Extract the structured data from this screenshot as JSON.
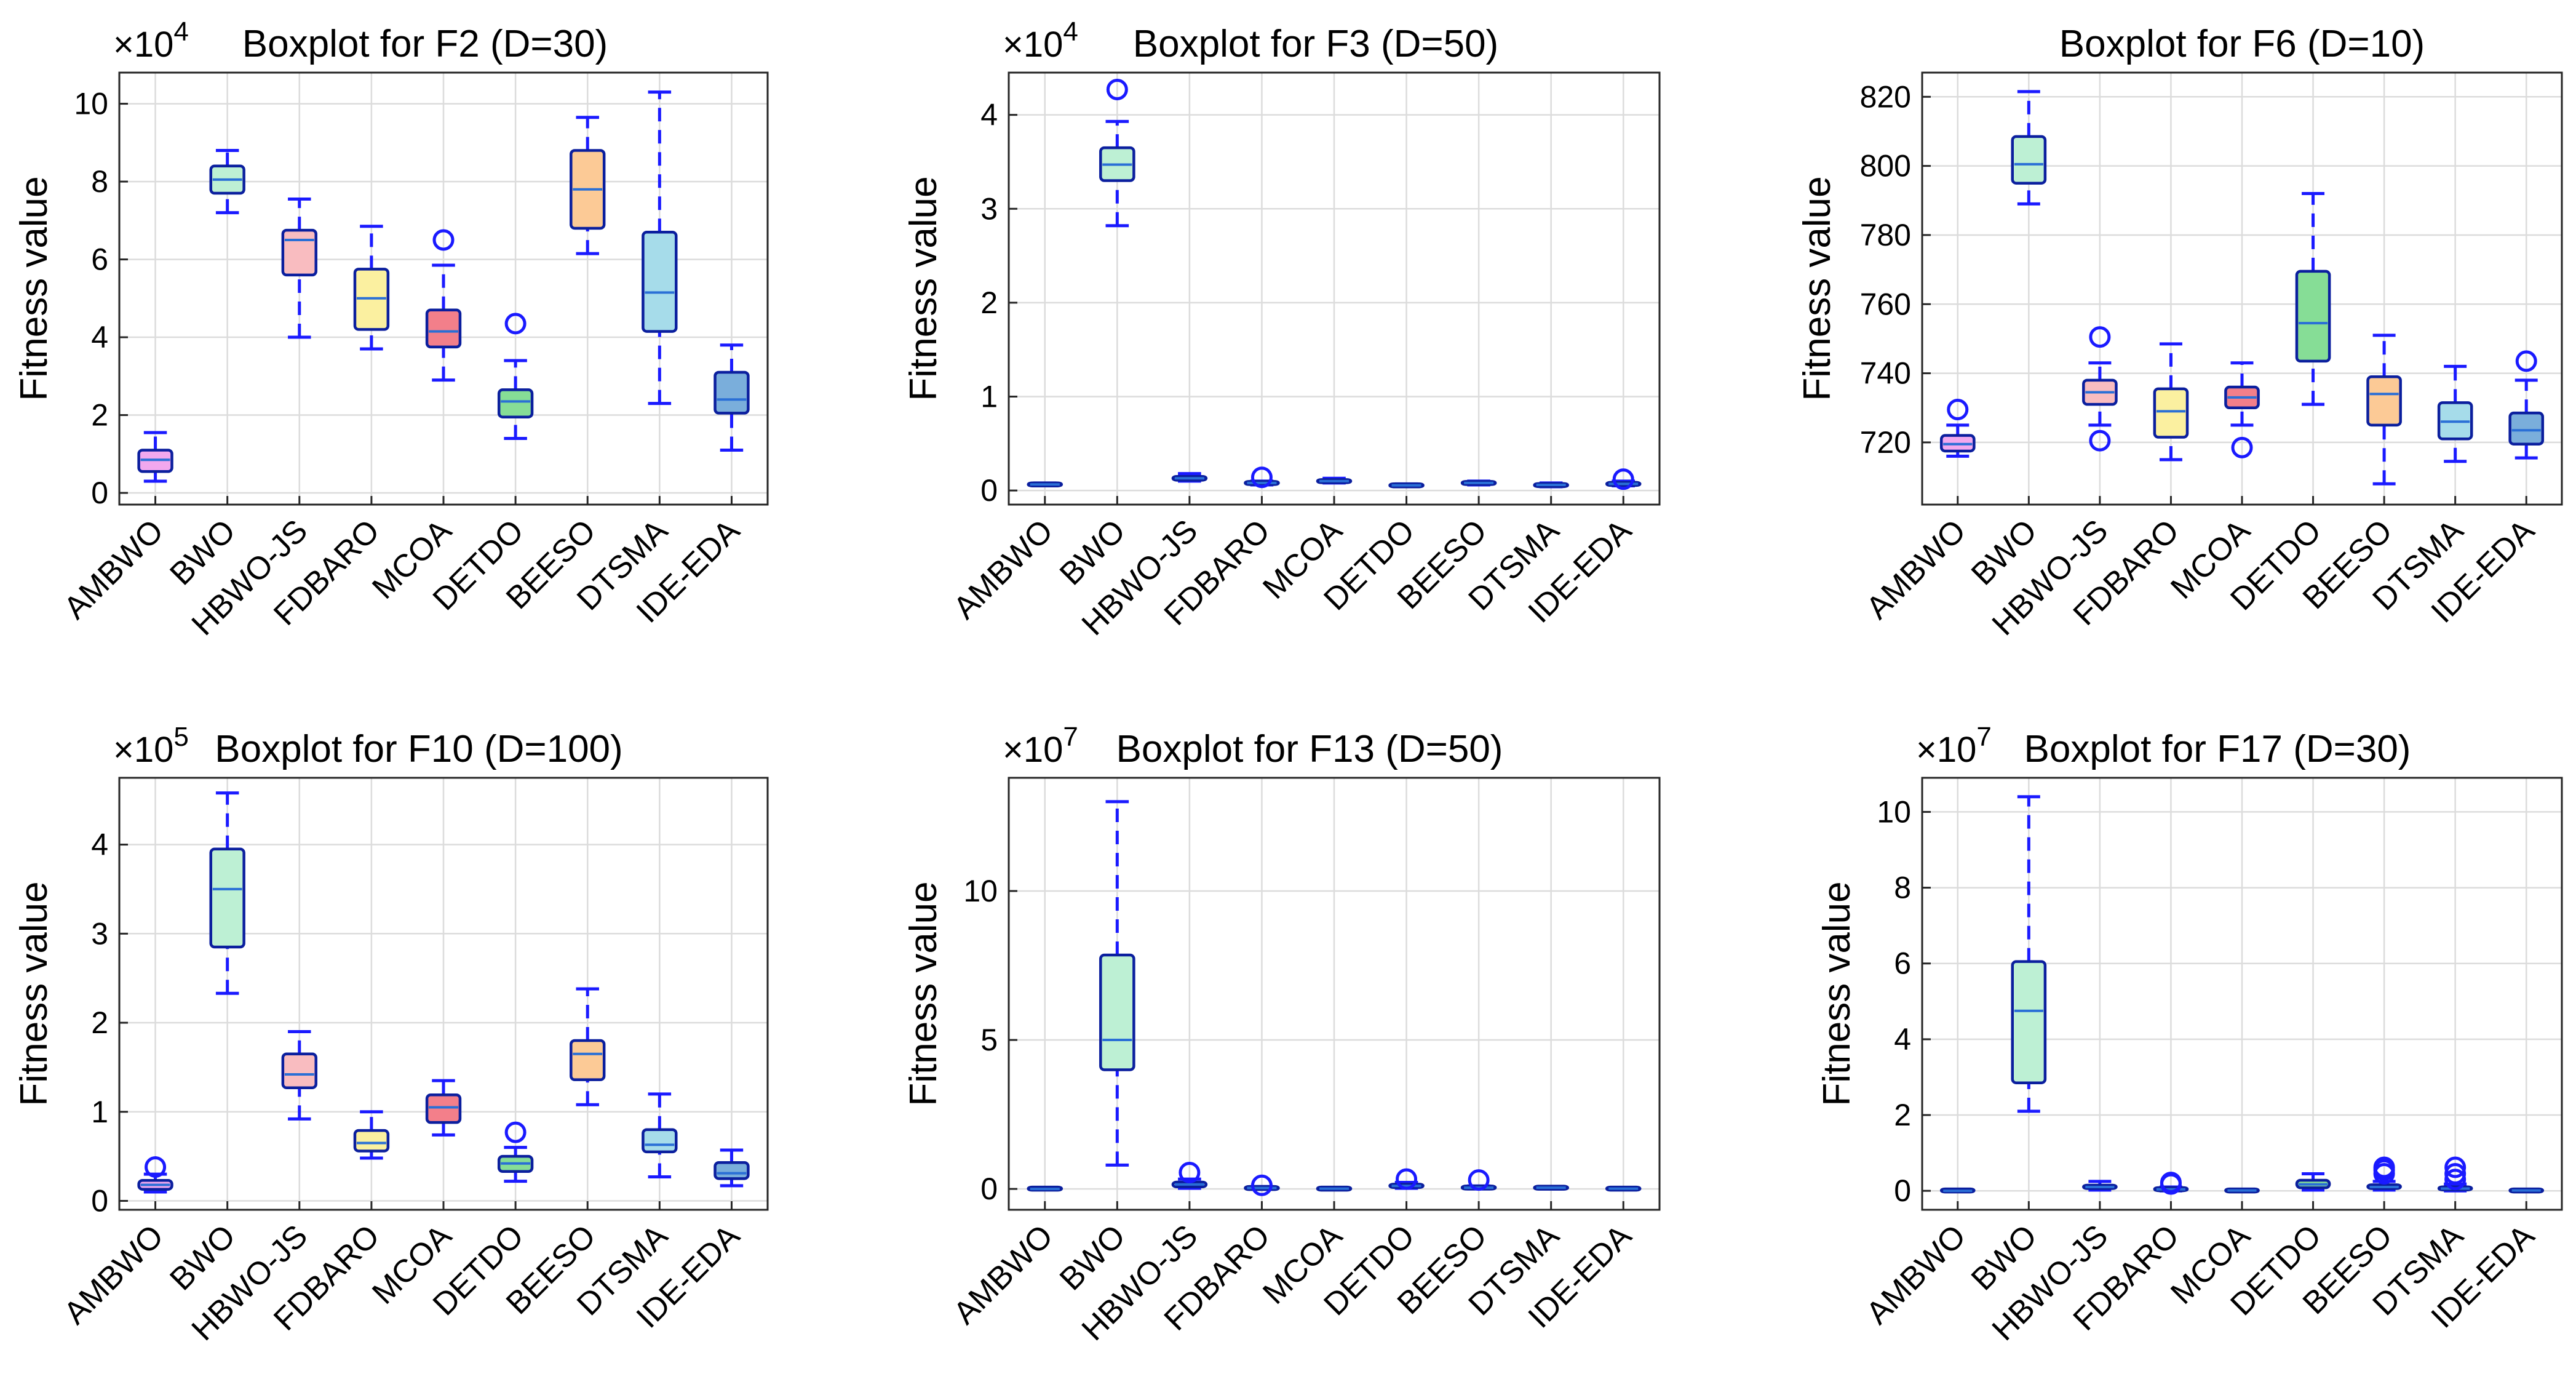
{
  "chart_data": [
    {
      "type": "box",
      "title": "Boxplot for F2 (D=30)",
      "multiplier": "×10",
      "exponent": "4",
      "ylabel": "Fitness value",
      "ylim": [
        -0.3,
        10.8
      ],
      "yticks": [
        0,
        2,
        4,
        6,
        8,
        10
      ],
      "categories": [
        "AMBWO",
        "BWO",
        "HBWO-JS",
        "FDBARO",
        "MCOA",
        "DETDO",
        "BEESO",
        "DTSMA",
        "IDE-EDA"
      ],
      "boxes": [
        {
          "name": "AMBWO",
          "min": 0.3,
          "q1": 0.55,
          "median": 0.85,
          "q3": 1.1,
          "max": 1.55,
          "outliers": []
        },
        {
          "name": "BWO",
          "min": 7.2,
          "q1": 7.7,
          "median": 8.05,
          "q3": 8.4,
          "max": 8.8,
          "outliers": []
        },
        {
          "name": "HBWO-JS",
          "min": 4.0,
          "q1": 5.6,
          "median": 6.5,
          "q3": 6.75,
          "max": 7.55,
          "outliers": []
        },
        {
          "name": "FDBARO",
          "min": 3.7,
          "q1": 4.2,
          "median": 5.0,
          "q3": 5.75,
          "max": 6.85,
          "outliers": []
        },
        {
          "name": "MCOA",
          "min": 2.9,
          "q1": 3.75,
          "median": 4.15,
          "q3": 4.7,
          "max": 5.85,
          "outliers": [
            6.5
          ]
        },
        {
          "name": "DETDO",
          "min": 1.4,
          "q1": 1.95,
          "median": 2.35,
          "q3": 2.65,
          "max": 3.4,
          "outliers": [
            4.35
          ]
        },
        {
          "name": "BEESO",
          "min": 6.15,
          "q1": 6.8,
          "median": 7.8,
          "q3": 8.8,
          "max": 9.65,
          "outliers": []
        },
        {
          "name": "DTSMA",
          "min": 2.3,
          "q1": 4.15,
          "median": 5.15,
          "q3": 6.7,
          "max": 10.3,
          "outliers": []
        },
        {
          "name": "IDE-EDA",
          "min": 1.1,
          "q1": 2.05,
          "median": 2.4,
          "q3": 3.1,
          "max": 3.8,
          "outliers": []
        }
      ],
      "colors": [
        "#f2a8ee",
        "#bdf0d4",
        "#f9bcc0",
        "#fbf0a0",
        "#f37f8a",
        "#86dd96",
        "#fcca96",
        "#a6dcea",
        "#7aaedb"
      ]
    },
    {
      "type": "box",
      "title": "Boxplot for F3 (D=50)",
      "multiplier": "×10",
      "exponent": "4",
      "ylabel": "Fitness value",
      "ylim": [
        -0.15,
        4.45
      ],
      "yticks": [
        0,
        1,
        2,
        3,
        4
      ],
      "categories": [
        "AMBWO",
        "BWO",
        "HBWO-JS",
        "FDBARO",
        "MCOA",
        "DETDO",
        "BEESO",
        "DTSMA",
        "IDE-EDA"
      ],
      "boxes": [
        {
          "name": "AMBWO",
          "min": 0.05,
          "q1": 0.06,
          "median": 0.065,
          "q3": 0.07,
          "max": 0.08,
          "outliers": []
        },
        {
          "name": "BWO",
          "min": 2.82,
          "q1": 3.3,
          "median": 3.47,
          "q3": 3.65,
          "max": 3.93,
          "outliers": [
            4.27
          ]
        },
        {
          "name": "HBWO-JS",
          "min": 0.1,
          "q1": 0.11,
          "median": 0.13,
          "q3": 0.15,
          "max": 0.18,
          "outliers": []
        },
        {
          "name": "FDBARO",
          "min": 0.06,
          "q1": 0.07,
          "median": 0.08,
          "q3": 0.09,
          "max": 0.1,
          "outliers": [
            0.14
          ]
        },
        {
          "name": "MCOA",
          "min": 0.08,
          "q1": 0.09,
          "median": 0.1,
          "q3": 0.11,
          "max": 0.13,
          "outliers": []
        },
        {
          "name": "DETDO",
          "min": 0.04,
          "q1": 0.05,
          "median": 0.055,
          "q3": 0.06,
          "max": 0.07,
          "outliers": []
        },
        {
          "name": "BEESO",
          "min": 0.06,
          "q1": 0.07,
          "median": 0.08,
          "q3": 0.09,
          "max": 0.1,
          "outliers": []
        },
        {
          "name": "DTSMA",
          "min": 0.04,
          "q1": 0.05,
          "median": 0.06,
          "q3": 0.065,
          "max": 0.08,
          "outliers": []
        },
        {
          "name": "IDE-EDA",
          "min": 0.05,
          "q1": 0.06,
          "median": 0.07,
          "q3": 0.08,
          "max": 0.1,
          "outliers": [
            0.12
          ]
        }
      ],
      "colors": [
        "#f2a8ee",
        "#bdf0d4",
        "#f9bcc0",
        "#fbf0a0",
        "#f37f8a",
        "#86dd96",
        "#fcca96",
        "#a6dcea",
        "#7aaedb"
      ]
    },
    {
      "type": "box",
      "title": "Boxplot for F6 (D=10)",
      "multiplier": "",
      "exponent": "",
      "ylabel": "Fitness value",
      "ylim": [
        702,
        827
      ],
      "yticks": [
        720,
        740,
        760,
        780,
        800,
        820
      ],
      "categories": [
        "AMBWO",
        "BWO",
        "HBWO-JS",
        "FDBARO",
        "MCOA",
        "DETDO",
        "BEESO",
        "DTSMA",
        "IDE-EDA"
      ],
      "boxes": [
        {
          "name": "AMBWO",
          "min": 716,
          "q1": 717.5,
          "median": 719.5,
          "q3": 722,
          "max": 725,
          "outliers": [
            729.5
          ]
        },
        {
          "name": "BWO",
          "min": 789,
          "q1": 795,
          "median": 800.5,
          "q3": 808.5,
          "max": 821.5,
          "outliers": []
        },
        {
          "name": "HBWO-JS",
          "min": 725,
          "q1": 731,
          "median": 734.5,
          "q3": 738,
          "max": 743,
          "outliers": [
            750.5,
            720.5
          ]
        },
        {
          "name": "FDBARO",
          "min": 715,
          "q1": 721.5,
          "median": 729,
          "q3": 735.5,
          "max": 748.5,
          "outliers": []
        },
        {
          "name": "MCOA",
          "min": 725,
          "q1": 730,
          "median": 733,
          "q3": 736,
          "max": 743,
          "outliers": [
            718.5
          ]
        },
        {
          "name": "DETDO",
          "min": 731,
          "q1": 743.5,
          "median": 754.5,
          "q3": 769.5,
          "max": 792,
          "outliers": []
        },
        {
          "name": "BEESO",
          "min": 708,
          "q1": 725,
          "median": 734,
          "q3": 739,
          "max": 751,
          "outliers": []
        },
        {
          "name": "DTSMA",
          "min": 714.5,
          "q1": 721,
          "median": 726,
          "q3": 731.5,
          "max": 742,
          "outliers": []
        },
        {
          "name": "IDE-EDA",
          "min": 715.5,
          "q1": 719.5,
          "median": 723.5,
          "q3": 728.5,
          "max": 738,
          "outliers": [
            743.5
          ]
        }
      ],
      "colors": [
        "#f2a8ee",
        "#bdf0d4",
        "#f9bcc0",
        "#fbf0a0",
        "#f37f8a",
        "#86dd96",
        "#fcca96",
        "#a6dcea",
        "#7aaedb"
      ]
    },
    {
      "type": "box",
      "title": "Boxplot for F10 (D=100)",
      "multiplier": "×10",
      "exponent": "5",
      "ylabel": "Fitness value",
      "ylim": [
        -0.1,
        4.75
      ],
      "yticks": [
        0,
        1,
        2,
        3,
        4
      ],
      "categories": [
        "AMBWO",
        "BWO",
        "HBWO-JS",
        "FDBARO",
        "MCOA",
        "DETDO",
        "BEESO",
        "DTSMA",
        "IDE-EDA"
      ],
      "boxes": [
        {
          "name": "AMBWO",
          "min": 0.1,
          "q1": 0.13,
          "median": 0.18,
          "q3": 0.23,
          "max": 0.3,
          "outliers": [
            0.38
          ]
        },
        {
          "name": "BWO",
          "min": 2.33,
          "q1": 2.85,
          "median": 3.5,
          "q3": 3.95,
          "max": 4.58,
          "outliers": []
        },
        {
          "name": "HBWO-JS",
          "min": 0.92,
          "q1": 1.27,
          "median": 1.42,
          "q3": 1.65,
          "max": 1.9,
          "outliers": []
        },
        {
          "name": "FDBARO",
          "min": 0.48,
          "q1": 0.56,
          "median": 0.65,
          "q3": 0.79,
          "max": 1.0,
          "outliers": []
        },
        {
          "name": "MCOA",
          "min": 0.74,
          "q1": 0.88,
          "median": 1.05,
          "q3": 1.19,
          "max": 1.35,
          "outliers": []
        },
        {
          "name": "DETDO",
          "min": 0.22,
          "q1": 0.33,
          "median": 0.42,
          "q3": 0.5,
          "max": 0.6,
          "outliers": [
            0.77
          ]
        },
        {
          "name": "BEESO",
          "min": 1.08,
          "q1": 1.36,
          "median": 1.65,
          "q3": 1.8,
          "max": 2.38,
          "outliers": []
        },
        {
          "name": "DTSMA",
          "min": 0.27,
          "q1": 0.55,
          "median": 0.63,
          "q3": 0.8,
          "max": 1.2,
          "outliers": []
        },
        {
          "name": "IDE-EDA",
          "min": 0.17,
          "q1": 0.25,
          "median": 0.31,
          "q3": 0.43,
          "max": 0.57,
          "outliers": []
        }
      ],
      "colors": [
        "#f2a8ee",
        "#bdf0d4",
        "#f9bcc0",
        "#fbf0a0",
        "#f37f8a",
        "#86dd96",
        "#fcca96",
        "#a6dcea",
        "#7aaedb"
      ]
    },
    {
      "type": "box",
      "title": "Boxplot for F13 (D=50)",
      "multiplier": "×10",
      "exponent": "7",
      "ylabel": "Fitness value",
      "ylim": [
        -0.7,
        13.8
      ],
      "yticks": [
        0,
        5,
        10
      ],
      "categories": [
        "AMBWO",
        "BWO",
        "HBWO-JS",
        "FDBARO",
        "MCOA",
        "DETDO",
        "BEESO",
        "DTSMA",
        "IDE-EDA"
      ],
      "boxes": [
        {
          "name": "AMBWO",
          "min": 0.0,
          "q1": 0.0,
          "median": 0.0,
          "q3": 0.02,
          "max": 0.03,
          "outliers": []
        },
        {
          "name": "BWO",
          "min": 0.8,
          "q1": 4.0,
          "median": 5.0,
          "q3": 7.85,
          "max": 13.0,
          "outliers": []
        },
        {
          "name": "HBWO-JS",
          "min": 0.02,
          "q1": 0.07,
          "median": 0.15,
          "q3": 0.23,
          "max": 0.33,
          "outliers": [
            0.55
          ]
        },
        {
          "name": "FDBARO",
          "min": 0.0,
          "q1": 0.01,
          "median": 0.03,
          "q3": 0.05,
          "max": 0.08,
          "outliers": [
            0.12
          ]
        },
        {
          "name": "MCOA",
          "min": 0.0,
          "q1": 0.0,
          "median": 0.01,
          "q3": 0.02,
          "max": 0.04,
          "outliers": []
        },
        {
          "name": "DETDO",
          "min": 0.02,
          "q1": 0.05,
          "median": 0.1,
          "q3": 0.16,
          "max": 0.22,
          "outliers": [
            0.33
          ]
        },
        {
          "name": "BEESO",
          "min": 0.0,
          "q1": 0.02,
          "median": 0.04,
          "q3": 0.07,
          "max": 0.1,
          "outliers": [
            0.3
          ]
        },
        {
          "name": "DTSMA",
          "min": 0.0,
          "q1": 0.02,
          "median": 0.04,
          "q3": 0.06,
          "max": 0.08,
          "outliers": []
        },
        {
          "name": "IDE-EDA",
          "min": 0.0,
          "q1": 0.0,
          "median": 0.01,
          "q3": 0.02,
          "max": 0.04,
          "outliers": []
        }
      ],
      "colors": [
        "#f2a8ee",
        "#bdf0d4",
        "#f9bcc0",
        "#fbf0a0",
        "#f37f8a",
        "#86dd96",
        "#fcca96",
        "#a6dcea",
        "#7aaedb"
      ]
    },
    {
      "type": "box",
      "title": "Boxplot for F17 (D=30)",
      "multiplier": "×10",
      "exponent": "7",
      "ylabel": "Fitness value",
      "ylim": [
        -0.5,
        10.9
      ],
      "yticks": [
        0,
        2,
        4,
        6,
        8,
        10
      ],
      "categories": [
        "AMBWO",
        "BWO",
        "HBWO-JS",
        "FDBARO",
        "MCOA",
        "DETDO",
        "BEESO",
        "DTSMA",
        "IDE-EDA"
      ],
      "boxes": [
        {
          "name": "AMBWO",
          "min": 0.0,
          "q1": 0.0,
          "median": 0.0,
          "q3": 0.02,
          "max": 0.03,
          "outliers": []
        },
        {
          "name": "BWO",
          "min": 2.1,
          "q1": 2.85,
          "median": 4.75,
          "q3": 6.05,
          "max": 10.4,
          "outliers": []
        },
        {
          "name": "HBWO-JS",
          "min": 0.02,
          "q1": 0.06,
          "median": 0.1,
          "q3": 0.15,
          "max": 0.25,
          "outliers": []
        },
        {
          "name": "FDBARO",
          "min": 0.0,
          "q1": 0.02,
          "median": 0.04,
          "q3": 0.07,
          "max": 0.1,
          "outliers": [
            0.18,
            0.22
          ]
        },
        {
          "name": "MCOA",
          "min": 0.0,
          "q1": 0.0,
          "median": 0.01,
          "q3": 0.02,
          "max": 0.03,
          "outliers": []
        },
        {
          "name": "DETDO",
          "min": 0.02,
          "q1": 0.08,
          "median": 0.17,
          "q3": 0.28,
          "max": 0.45,
          "outliers": []
        },
        {
          "name": "BEESO",
          "min": 0.02,
          "q1": 0.06,
          "median": 0.1,
          "q3": 0.16,
          "max": 0.25,
          "outliers": [
            0.45,
            0.55,
            0.62
          ]
        },
        {
          "name": "DTSMA",
          "min": 0.0,
          "q1": 0.03,
          "median": 0.06,
          "q3": 0.1,
          "max": 0.18,
          "outliers": [
            0.3,
            0.45,
            0.62
          ]
        },
        {
          "name": "IDE-EDA",
          "min": 0.0,
          "q1": 0.0,
          "median": 0.01,
          "q3": 0.02,
          "max": 0.04,
          "outliers": []
        }
      ],
      "colors": [
        "#f2a8ee",
        "#bdf0d4",
        "#f9bcc0",
        "#fbf0a0",
        "#f37f8a",
        "#86dd96",
        "#fcca96",
        "#a6dcea",
        "#7aaedb"
      ]
    }
  ]
}
